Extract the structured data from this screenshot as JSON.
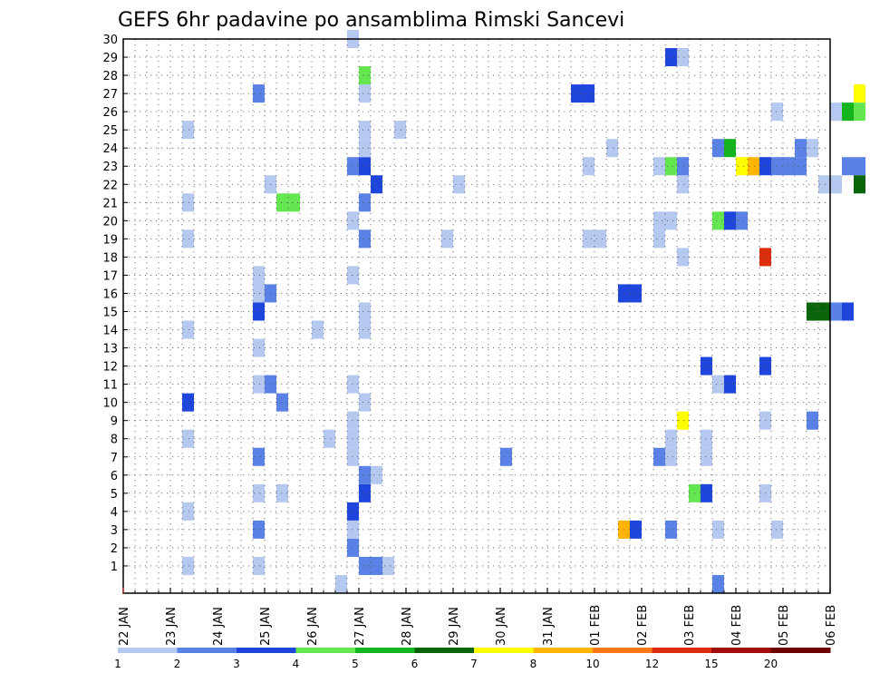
{
  "chart_data": {
    "type": "heatmap",
    "title": "GEFS 6hr padavine po ansamblima Rimski Sancevi",
    "xlabel": "",
    "ylabel": "",
    "x_tick_labels": [
      "22 JAN",
      "23 JAN",
      "24 JAN",
      "25 JAN",
      "26 JAN",
      "27 JAN",
      "28 JAN",
      "29 JAN",
      "30 JAN",
      "31 JAN",
      "01 FEB",
      "02 FEB",
      "03 FEB",
      "04 FEB",
      "05 FEB",
      "06 FEB"
    ],
    "y_tick_labels": [
      "1",
      "2",
      "3",
      "4",
      "5",
      "6",
      "7",
      "8",
      "9",
      "10",
      "11",
      "12",
      "13",
      "14",
      "15",
      "16",
      "17",
      "18",
      "19",
      "20",
      "21",
      "22",
      "23",
      "24",
      "25",
      "26",
      "27",
      "28",
      "29",
      "30"
    ],
    "ylim": [
      0,
      30
    ],
    "grid": true,
    "colorbar": {
      "labels": [
        "1",
        "2",
        "3",
        "4",
        "5",
        "6",
        "7",
        "8",
        "10",
        "12",
        "15",
        "20"
      ],
      "colors": [
        "#b4c8f0",
        "#5a82e6",
        "#1e46dc",
        "#64e650",
        "#14b41e",
        "#0a640a",
        "#ffff00",
        "#ffb400",
        "#ff7814",
        "#dc2d0f",
        "#a00a0a",
        "#6e0000"
      ]
    },
    "cells": [
      {
        "day": 1.25,
        "m": 1,
        "v": 1.5
      },
      {
        "day": 1.25,
        "m": 4,
        "v": 1.5
      },
      {
        "day": 1.25,
        "m": 8,
        "v": 1.5
      },
      {
        "day": 1.25,
        "m": 10,
        "v": 3.5
      },
      {
        "day": 1.25,
        "m": 14,
        "v": 1.5
      },
      {
        "day": 1.25,
        "m": 19,
        "v": 1.5
      },
      {
        "day": 1.25,
        "m": 21,
        "v": 1.5
      },
      {
        "day": 1.25,
        "m": 25,
        "v": 1.5
      },
      {
        "day": 2.75,
        "m": 1,
        "v": 1.5
      },
      {
        "day": 2.75,
        "m": 3,
        "v": 2.5
      },
      {
        "day": 2.75,
        "m": 5,
        "v": 1.5
      },
      {
        "day": 2.75,
        "m": 7,
        "v": 2.5
      },
      {
        "day": 2.75,
        "m": 11,
        "v": 1.5
      },
      {
        "day": 2.75,
        "m": 13,
        "v": 1.5
      },
      {
        "day": 2.75,
        "m": 15,
        "v": 3.5
      },
      {
        "day": 2.75,
        "m": 16,
        "v": 1.5
      },
      {
        "day": 2.75,
        "m": 17,
        "v": 1.5
      },
      {
        "day": 2.75,
        "m": 27,
        "v": 2.5
      },
      {
        "day": 3.0,
        "m": 11,
        "v": 2.5
      },
      {
        "day": 3.0,
        "m": 16,
        "v": 2.5
      },
      {
        "day": 3.0,
        "m": 22,
        "v": 1.5
      },
      {
        "day": 3.25,
        "m": 5,
        "v": 1.5
      },
      {
        "day": 3.25,
        "m": 10,
        "v": 2.5
      },
      {
        "day": 3.25,
        "m": 21,
        "v": 4.5
      },
      {
        "day": 3.5,
        "m": 21,
        "v": 4.5
      },
      {
        "day": 4.0,
        "m": 14,
        "v": 1.5
      },
      {
        "day": 4.25,
        "m": 8,
        "v": 1.5
      },
      {
        "day": 4.5,
        "m": 0,
        "v": 1.5
      },
      {
        "day": 4.75,
        "m": 2,
        "v": 2.5
      },
      {
        "day": 4.75,
        "m": 3,
        "v": 1.5
      },
      {
        "day": 4.75,
        "m": 4,
        "v": 3.5
      },
      {
        "day": 4.75,
        "m": 7,
        "v": 1.5
      },
      {
        "day": 4.75,
        "m": 8,
        "v": 1.5
      },
      {
        "day": 4.75,
        "m": 9,
        "v": 1.5
      },
      {
        "day": 4.75,
        "m": 11,
        "v": 1.5
      },
      {
        "day": 4.75,
        "m": 17,
        "v": 1.5
      },
      {
        "day": 4.75,
        "m": 20,
        "v": 1.5
      },
      {
        "day": 4.75,
        "m": 23,
        "v": 2.5
      },
      {
        "day": 4.75,
        "m": 30,
        "v": 1.5
      },
      {
        "day": 5.0,
        "m": 1,
        "v": 2.5
      },
      {
        "day": 5.0,
        "m": 5,
        "v": 3.5
      },
      {
        "day": 5.0,
        "m": 6,
        "v": 2.5
      },
      {
        "day": 5.0,
        "m": 10,
        "v": 1.5
      },
      {
        "day": 5.0,
        "m": 14,
        "v": 1.5
      },
      {
        "day": 5.0,
        "m": 15,
        "v": 1.5
      },
      {
        "day": 5.0,
        "m": 19,
        "v": 2.5
      },
      {
        "day": 5.0,
        "m": 21,
        "v": 2.5
      },
      {
        "day": 5.0,
        "m": 23,
        "v": 3.5
      },
      {
        "day": 5.0,
        "m": 24,
        "v": 1.5
      },
      {
        "day": 5.0,
        "m": 25,
        "v": 1.5
      },
      {
        "day": 5.0,
        "m": 27,
        "v": 1.5
      },
      {
        "day": 5.0,
        "m": 28,
        "v": 4.5
      },
      {
        "day": 5.25,
        "m": 1,
        "v": 2.5
      },
      {
        "day": 5.25,
        "m": 6,
        "v": 1.5
      },
      {
        "day": 5.25,
        "m": 22,
        "v": 3.5
      },
      {
        "day": 5.5,
        "m": 1,
        "v": 1.5
      },
      {
        "day": 5.75,
        "m": 25,
        "v": 1.5
      },
      {
        "day": 6.75,
        "m": 19,
        "v": 1.5
      },
      {
        "day": 7.0,
        "m": 22,
        "v": 1.5
      },
      {
        "day": 8.0,
        "m": 7,
        "v": 2.5
      },
      {
        "day": 9.5,
        "m": 27,
        "v": 3.5
      },
      {
        "day": 9.75,
        "m": 27,
        "v": 3.5
      },
      {
        "day": 9.75,
        "m": 19,
        "v": 1.5
      },
      {
        "day": 9.75,
        "m": 23,
        "v": 1.5
      },
      {
        "day": 10.0,
        "m": 19,
        "v": 1.5
      },
      {
        "day": 10.25,
        "m": 24,
        "v": 1.5
      },
      {
        "day": 10.5,
        "m": 3,
        "v": 8.5
      },
      {
        "day": 10.5,
        "m": 16,
        "v": 3.5
      },
      {
        "day": 10.75,
        "m": 3,
        "v": 3.5
      },
      {
        "day": 10.75,
        "m": 16,
        "v": 3.5
      },
      {
        "day": 11.25,
        "m": 7,
        "v": 2.5
      },
      {
        "day": 11.25,
        "m": 19,
        "v": 1.5
      },
      {
        "day": 11.25,
        "m": 20,
        "v": 1.5
      },
      {
        "day": 11.25,
        "m": 23,
        "v": 1.5
      },
      {
        "day": 11.5,
        "m": 3,
        "v": 2.5
      },
      {
        "day": 11.5,
        "m": 7,
        "v": 1.5
      },
      {
        "day": 11.5,
        "m": 8,
        "v": 1.5
      },
      {
        "day": 11.5,
        "m": 20,
        "v": 1.5
      },
      {
        "day": 11.5,
        "m": 23,
        "v": 4.5
      },
      {
        "day": 11.5,
        "m": 29,
        "v": 3.5
      },
      {
        "day": 11.75,
        "m": 9,
        "v": 7.5
      },
      {
        "day": 11.75,
        "m": 18,
        "v": 1.5
      },
      {
        "day": 11.75,
        "m": 22,
        "v": 1.5
      },
      {
        "day": 11.75,
        "m": 23,
        "v": 2.5
      },
      {
        "day": 11.75,
        "m": 29,
        "v": 1.5
      },
      {
        "day": 12.0,
        "m": 5,
        "v": 4.5
      },
      {
        "day": 12.25,
        "m": 5,
        "v": 3.5
      },
      {
        "day": 12.25,
        "m": 12,
        "v": 3.5
      },
      {
        "day": 12.25,
        "m": 7,
        "v": 1.5
      },
      {
        "day": 12.25,
        "m": 8,
        "v": 1.5
      },
      {
        "day": 12.5,
        "m": 0,
        "v": 2.5
      },
      {
        "day": 12.5,
        "m": 3,
        "v": 1.5
      },
      {
        "day": 12.5,
        "m": 11,
        "v": 1.5
      },
      {
        "day": 12.5,
        "m": 20,
        "v": 4.5
      },
      {
        "day": 12.5,
        "m": 24,
        "v": 2.5
      },
      {
        "day": 12.75,
        "m": 11,
        "v": 3.5
      },
      {
        "day": 12.75,
        "m": 20,
        "v": 3.5
      },
      {
        "day": 12.75,
        "m": 24,
        "v": 5.5
      },
      {
        "day": 13.0,
        "m": 20,
        "v": 2.5
      },
      {
        "day": 13.0,
        "m": 23,
        "v": 7.5
      },
      {
        "day": 13.25,
        "m": 23,
        "v": 8.5
      },
      {
        "day": 13.5,
        "m": 5,
        "v": 1.5
      },
      {
        "day": 13.5,
        "m": 9,
        "v": 1.5
      },
      {
        "day": 13.5,
        "m": 12,
        "v": 3.5
      },
      {
        "day": 13.5,
        "m": 18,
        "v": 13.5
      },
      {
        "day": 13.5,
        "m": 23,
        "v": 3.5
      },
      {
        "day": 13.75,
        "m": 3,
        "v": 1.5
      },
      {
        "day": 13.75,
        "m": 23,
        "v": 2.5
      },
      {
        "day": 13.75,
        "m": 26,
        "v": 1.5
      },
      {
        "day": 14.0,
        "m": 23,
        "v": 2.5
      },
      {
        "day": 14.25,
        "m": 23,
        "v": 2.5
      },
      {
        "day": 14.25,
        "m": 24,
        "v": 2.5
      },
      {
        "day": 14.5,
        "m": 24,
        "v": 1.5
      },
      {
        "day": 14.5,
        "m": 9,
        "v": 2.5
      },
      {
        "day": 14.5,
        "m": 15,
        "v": 6.5
      },
      {
        "day": 14.75,
        "m": 15,
        "v": 6.5
      },
      {
        "day": 14.75,
        "m": 22,
        "v": 1.5
      },
      {
        "day": 15.0,
        "m": 15,
        "v": 2.5
      },
      {
        "day": 15.0,
        "m": 22,
        "v": 1.5
      },
      {
        "day": 15.0,
        "m": 26,
        "v": 1.5
      },
      {
        "day": 15.25,
        "m": 15,
        "v": 3.5
      },
      {
        "day": 15.25,
        "m": 23,
        "v": 2.5
      },
      {
        "day": 15.25,
        "m": 26,
        "v": 5.5
      },
      {
        "day": 15.5,
        "m": 23,
        "v": 2.5
      },
      {
        "day": 15.5,
        "m": 26,
        "v": 4.5
      },
      {
        "day": 15.5,
        "m": 22,
        "v": 6.5
      },
      {
        "day": 15.5,
        "m": 27,
        "v": 7.5
      }
    ]
  }
}
